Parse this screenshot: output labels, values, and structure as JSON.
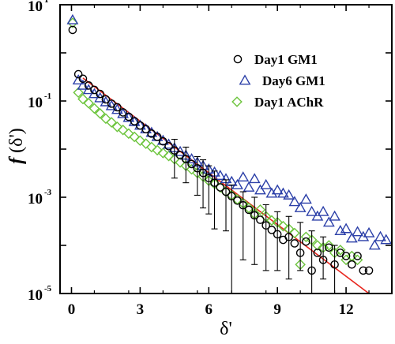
{
  "chart_data": {
    "type": "scatter",
    "title": "",
    "xlabel": "δ'",
    "ylabel": {
      "prefix": "f",
      "suffix": " (δ')"
    },
    "xlim": [
      -0.5,
      14
    ],
    "ylim_log10": [
      -5,
      1
    ],
    "y_scale": "log",
    "x_ticks": [
      0,
      3,
      6,
      9,
      12
    ],
    "x_tick_labels": [
      "0",
      "3",
      "6",
      "9",
      "12"
    ],
    "y_ticks": [
      {
        "base": "10",
        "exp": "1",
        "value": 10
      },
      {
        "base": "10",
        "exp": "-1",
        "value": 0.1
      },
      {
        "base": "10",
        "exp": "-3",
        "value": 0.001
      },
      {
        "base": "10",
        "exp": "-5",
        "value": 1e-05
      }
    ],
    "legend_position": "top-right",
    "series": [
      {
        "name": "Day1 GM1",
        "marker": "circle",
        "color": "#000000",
        "points": [
          [
            0.05,
            3.0
          ],
          [
            0.3,
            0.36
          ],
          [
            0.5,
            0.29
          ],
          [
            0.75,
            0.21
          ],
          [
            1.0,
            0.17
          ],
          [
            1.25,
            0.14
          ],
          [
            1.5,
            0.108
          ],
          [
            1.75,
            0.088
          ],
          [
            2.0,
            0.074
          ],
          [
            2.25,
            0.058
          ],
          [
            2.5,
            0.047
          ],
          [
            2.75,
            0.038
          ],
          [
            3.0,
            0.031
          ],
          [
            3.25,
            0.026
          ],
          [
            3.5,
            0.021
          ],
          [
            3.75,
            0.018
          ],
          [
            4.0,
            0.0145
          ],
          [
            4.25,
            0.0115
          ],
          [
            4.5,
            0.0094
          ],
          [
            4.75,
            0.0075
          ],
          [
            5.0,
            0.0062
          ],
          [
            5.25,
            0.0049
          ],
          [
            5.5,
            0.004
          ],
          [
            5.75,
            0.0032
          ],
          [
            6.0,
            0.0025
          ],
          [
            6.25,
            0.002
          ],
          [
            6.5,
            0.0016
          ],
          [
            6.75,
            0.0013
          ],
          [
            7.0,
            0.00105
          ],
          [
            7.25,
            0.00085
          ],
          [
            7.5,
            0.00068
          ],
          [
            7.75,
            0.00055
          ],
          [
            8.0,
            0.00042
          ],
          [
            8.25,
            0.00034
          ],
          [
            8.5,
            0.00026
          ],
          [
            8.75,
            0.00021
          ],
          [
            9.0,
            0.00017
          ],
          [
            9.25,
            0.00013
          ],
          [
            9.5,
            0.00015
          ],
          [
            9.75,
            0.00011
          ],
          [
            10.0,
            7e-05
          ],
          [
            10.25,
            0.00012
          ],
          [
            10.5,
            3e-05
          ],
          [
            10.75,
            7e-05
          ],
          [
            11.0,
            5e-05
          ],
          [
            11.25,
            9e-05
          ],
          [
            11.5,
            4e-05
          ],
          [
            11.75,
            7e-05
          ],
          [
            12.0,
            6e-05
          ],
          [
            12.25,
            4e-05
          ],
          [
            12.5,
            6e-05
          ],
          [
            12.75,
            3e-05
          ],
          [
            13.0,
            3e-05
          ]
        ],
        "error_bars": [
          {
            "x": 4.5,
            "low": 0.0025,
            "high": 0.016
          },
          {
            "x": 5.0,
            "low": 0.002,
            "high": 0.011
          },
          {
            "x": 5.5,
            "low": 0.0011,
            "high": 0.007
          },
          {
            "x": 5.75,
            "low": 0.0006,
            "high": 0.006
          },
          {
            "x": 6.0,
            "low": 0.00045,
            "high": 0.0045
          },
          {
            "x": 6.25,
            "low": 0.00022,
            "high": 0.0035
          },
          {
            "x": 6.75,
            "low": 0.0002,
            "high": 0.0023
          },
          {
            "x": 7.0,
            "low": 1e-05,
            "high": 0.0018
          },
          {
            "x": 7.5,
            "low": 5e-05,
            "high": 0.0013
          },
          {
            "x": 8.0,
            "low": 4e-05,
            "high": 0.001
          },
          {
            "x": 8.5,
            "low": 3e-05,
            "high": 0.0007
          },
          {
            "x": 9.0,
            "low": 3e-05,
            "high": 0.0005
          },
          {
            "x": 9.5,
            "low": 2e-05,
            "high": 0.0004
          },
          {
            "x": 10.0,
            "low": 3e-05,
            "high": 0.0003
          },
          {
            "x": 10.5,
            "low": 1e-05,
            "high": 0.0002
          },
          {
            "x": 11.0,
            "low": 2e-05,
            "high": 0.00015
          },
          {
            "x": 11.5,
            "low": 1e-05,
            "high": 0.0001
          }
        ]
      },
      {
        "name": "Day6 GM1",
        "marker": "triangle",
        "color": "#2b3fa8",
        "points": [
          [
            0.05,
            4.8
          ],
          [
            0.3,
            0.27
          ],
          [
            0.5,
            0.21
          ],
          [
            0.75,
            0.17
          ],
          [
            1.0,
            0.14
          ],
          [
            1.25,
            0.115
          ],
          [
            1.5,
            0.095
          ],
          [
            1.75,
            0.079
          ],
          [
            2.0,
            0.066
          ],
          [
            2.25,
            0.054
          ],
          [
            2.5,
            0.045
          ],
          [
            2.75,
            0.037
          ],
          [
            3.0,
            0.031
          ],
          [
            3.25,
            0.026
          ],
          [
            3.5,
            0.022
          ],
          [
            3.75,
            0.018
          ],
          [
            4.0,
            0.015
          ],
          [
            4.25,
            0.0125
          ],
          [
            4.5,
            0.0105
          ],
          [
            4.75,
            0.0088
          ],
          [
            5.0,
            0.0074
          ],
          [
            5.25,
            0.0062
          ],
          [
            5.5,
            0.0053
          ],
          [
            5.75,
            0.0045
          ],
          [
            6.0,
            0.0038
          ],
          [
            6.25,
            0.0033
          ],
          [
            6.5,
            0.0028
          ],
          [
            6.75,
            0.0024
          ],
          [
            7.0,
            0.0021
          ],
          [
            7.25,
            0.0018
          ],
          [
            7.5,
            0.0026
          ],
          [
            7.75,
            0.0016
          ],
          [
            8.0,
            0.0024
          ],
          [
            8.25,
            0.0014
          ],
          [
            8.5,
            0.0018
          ],
          [
            8.75,
            0.0012
          ],
          [
            9.0,
            0.0014
          ],
          [
            9.25,
            0.0012
          ],
          [
            9.5,
            0.0011
          ],
          [
            9.75,
            0.0008
          ],
          [
            10.0,
            0.0006
          ],
          [
            10.25,
            0.0009
          ],
          [
            10.5,
            0.0005
          ],
          [
            10.75,
            0.0004
          ],
          [
            11.0,
            0.0005
          ],
          [
            11.25,
            0.0003
          ],
          [
            11.5,
            0.0004
          ],
          [
            11.75,
            0.0002
          ],
          [
            12.0,
            0.00022
          ],
          [
            12.25,
            0.00014
          ],
          [
            12.5,
            0.00019
          ],
          [
            12.75,
            0.00015
          ],
          [
            13.0,
            0.00018
          ],
          [
            13.25,
            0.0001
          ],
          [
            13.5,
            0.00015
          ],
          [
            13.75,
            0.00013
          ]
        ]
      },
      {
        "name": "Day1 AChR",
        "marker": "diamond",
        "color": "#6cc43c",
        "points": [
          [
            0.05,
            4.2
          ],
          [
            0.3,
            0.15
          ],
          [
            0.5,
            0.11
          ],
          [
            0.75,
            0.09
          ],
          [
            1.0,
            0.07
          ],
          [
            1.25,
            0.055
          ],
          [
            1.5,
            0.043
          ],
          [
            1.75,
            0.036
          ],
          [
            2.0,
            0.029
          ],
          [
            2.25,
            0.025
          ],
          [
            2.5,
            0.021
          ],
          [
            2.75,
            0.018
          ],
          [
            3.0,
            0.015
          ],
          [
            3.25,
            0.013
          ],
          [
            3.5,
            0.011
          ],
          [
            3.75,
            0.0095
          ],
          [
            4.0,
            0.0083
          ],
          [
            4.25,
            0.0072
          ],
          [
            4.5,
            0.0062
          ],
          [
            4.75,
            0.0053
          ],
          [
            5.0,
            0.0045
          ],
          [
            5.25,
            0.0038
          ],
          [
            5.5,
            0.0032
          ],
          [
            5.75,
            0.0027
          ],
          [
            6.0,
            0.0022
          ],
          [
            6.25,
            0.0019
          ],
          [
            6.5,
            0.0016
          ],
          [
            6.75,
            0.0013
          ],
          [
            7.0,
            0.0011
          ],
          [
            7.25,
            0.0009
          ],
          [
            7.5,
            0.00075
          ],
          [
            7.75,
            0.0006
          ],
          [
            8.0,
            0.00045
          ],
          [
            8.25,
            0.00055
          ],
          [
            8.5,
            0.0004
          ],
          [
            8.75,
            0.00033
          ],
          [
            9.0,
            0.0003
          ],
          [
            9.25,
            0.00025
          ],
          [
            9.5,
            0.00022
          ],
          [
            9.75,
            0.00018
          ],
          [
            10.0,
            4e-05
          ],
          [
            10.25,
            0.00015
          ],
          [
            10.5,
            0.00013
          ],
          [
            10.75,
            0.0001
          ],
          [
            11.0,
            9e-05
          ],
          [
            11.25,
            0.0001
          ],
          [
            11.5,
            7e-05
          ],
          [
            11.75,
            8e-05
          ],
          [
            12.0,
            5e-05
          ],
          [
            12.25,
            6e-05
          ],
          [
            12.5,
            5e-05
          ]
        ]
      }
    ],
    "fit_line": {
      "color": "#e8261e",
      "points": [
        [
          0.5,
          0.3
        ],
        [
          13.0,
          1e-05
        ]
      ]
    }
  }
}
